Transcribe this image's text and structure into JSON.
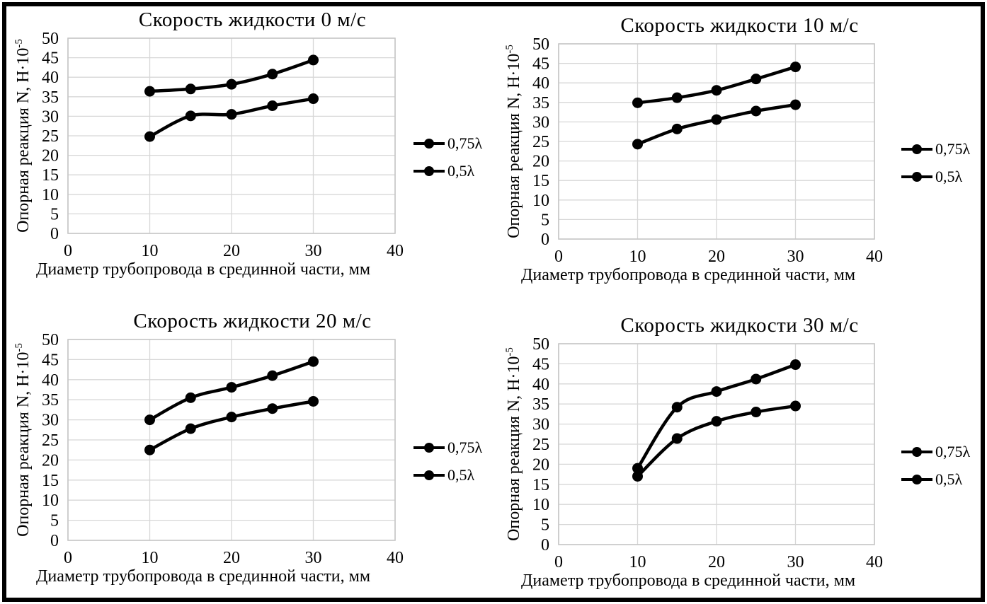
{
  "colors": {
    "series": "#000000",
    "grid": "#d7d7d7",
    "plot_border": "#c6c6c6",
    "text": "#000000",
    "background": "#ffffff",
    "frame": "#000000"
  },
  "chart_data": [
    {
      "type": "line",
      "title": "Скорость жидкости 0 м/с",
      "xlabel": "Диаметр трубопровода в срединной части, мм",
      "ylabel": "Опорная реакция N, Н·10⁻⁵",
      "ylabel_base": "Опорная реакция N, Н·10",
      "ylabel_sup": "-5",
      "x": [
        10,
        15,
        20,
        25,
        30
      ],
      "series": [
        {
          "name": "0,75λ",
          "values": [
            36.4,
            37.0,
            38.2,
            40.8,
            44.4
          ]
        },
        {
          "name": "0,5λ",
          "values": [
            24.8,
            30.1,
            30.5,
            32.7,
            34.5
          ]
        }
      ],
      "xlim": [
        0,
        40
      ],
      "ylim": [
        0,
        50
      ],
      "xticks": [
        0,
        10,
        20,
        30,
        40
      ],
      "yticks": [
        0,
        5,
        10,
        15,
        20,
        25,
        30,
        35,
        40,
        45,
        50
      ],
      "grid": true,
      "legend_position": "right"
    },
    {
      "type": "line",
      "title": "Скорость жидкости 10 м/с",
      "xlabel": "Диаметр трубопровода в срединной части, мм",
      "ylabel": "Опорная реакция N, Н·10⁻⁵",
      "ylabel_base": "Опорная реакция N, Н·10",
      "ylabel_sup": "-5",
      "x": [
        10,
        15,
        20,
        25,
        30
      ],
      "series": [
        {
          "name": "0,75λ",
          "values": [
            34.9,
            36.2,
            38.1,
            41.0,
            44.1
          ]
        },
        {
          "name": "0,5λ",
          "values": [
            24.3,
            28.2,
            30.6,
            32.8,
            34.4
          ]
        }
      ],
      "xlim": [
        0,
        40
      ],
      "ylim": [
        0,
        50
      ],
      "xticks": [
        0,
        10,
        20,
        30,
        40
      ],
      "yticks": [
        0,
        5,
        10,
        15,
        20,
        25,
        30,
        35,
        40,
        45,
        50
      ],
      "grid": true,
      "legend_position": "right"
    },
    {
      "type": "line",
      "title": "Скорость жидкости 20 м/с",
      "xlabel": "Диаметр трубопровода в срединной части, мм",
      "ylabel": "Опорная реакция N, Н·10⁻⁵",
      "ylabel_base": "Опорная реакция N, Н·10",
      "ylabel_sup": "-5",
      "x": [
        10,
        15,
        20,
        25,
        30
      ],
      "series": [
        {
          "name": "0,75λ",
          "values": [
            30.0,
            35.5,
            38.1,
            41.0,
            44.5
          ]
        },
        {
          "name": "0,5λ",
          "values": [
            22.5,
            27.8,
            30.7,
            32.8,
            34.6
          ]
        }
      ],
      "xlim": [
        0,
        40
      ],
      "ylim": [
        0,
        50
      ],
      "xticks": [
        0,
        10,
        20,
        30,
        40
      ],
      "yticks": [
        0,
        5,
        10,
        15,
        20,
        25,
        30,
        35,
        40,
        45,
        50
      ],
      "grid": true,
      "legend_position": "right"
    },
    {
      "type": "line",
      "title": "Скорость жидкости 30 м/с",
      "xlabel": "Диаметр трубопровода в срединной части, мм",
      "ylabel": "Опорная реакция N, Н·10⁻⁵",
      "ylabel_base": "Опорная реакция N, Н·10",
      "ylabel_sup": "-5",
      "x": [
        10,
        15,
        20,
        25,
        30
      ],
      "series": [
        {
          "name": "0,75λ",
          "values": [
            19.0,
            34.2,
            38.1,
            41.2,
            44.8
          ]
        },
        {
          "name": "0,5λ",
          "values": [
            17.0,
            26.4,
            30.7,
            33.0,
            34.5
          ]
        }
      ],
      "xlim": [
        0,
        40
      ],
      "ylim": [
        0,
        50
      ],
      "xticks": [
        0,
        10,
        20,
        30,
        40
      ],
      "yticks": [
        0,
        5,
        10,
        15,
        20,
        25,
        30,
        35,
        40,
        45,
        50
      ],
      "grid": true,
      "legend_position": "right"
    }
  ]
}
